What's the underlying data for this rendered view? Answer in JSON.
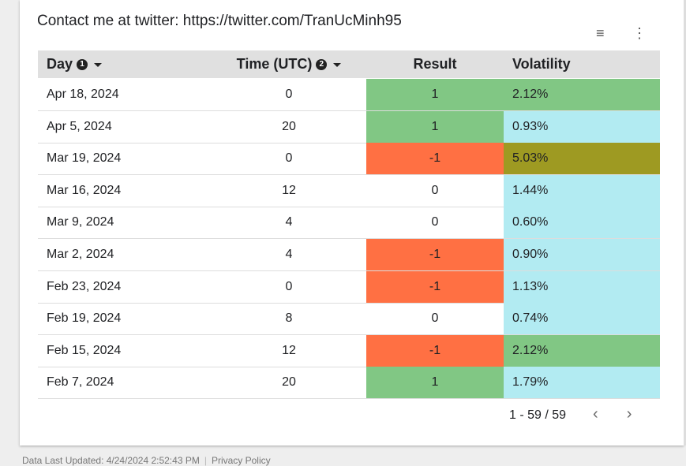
{
  "header": {
    "title": "Contact me at twitter: https://twitter.com/TranUcMinh95"
  },
  "table": {
    "columns": [
      {
        "label": "Day",
        "badge": "1"
      },
      {
        "label": "Time (UTC)",
        "badge": "2"
      },
      {
        "label": "Result"
      },
      {
        "label": "Volatility"
      }
    ],
    "rows": [
      {
        "day": "Apr 18, 2024",
        "time": 0,
        "result": 1,
        "volatility": "2.12%",
        "result_color": "#81c784",
        "volatility_color": "#81c784"
      },
      {
        "day": "Apr 5, 2024",
        "time": 20,
        "result": 1,
        "volatility": "0.93%",
        "result_color": "#81c784",
        "volatility_color": "#b2ebf2"
      },
      {
        "day": "Mar 19, 2024",
        "time": 0,
        "result": -1,
        "volatility": "5.03%",
        "result_color": "#ff7043",
        "volatility_color": "#9e9a22"
      },
      {
        "day": "Mar 16, 2024",
        "time": 12,
        "result": 0,
        "volatility": "1.44%",
        "volatility_color": "#b2ebf2"
      },
      {
        "day": "Mar 9, 2024",
        "time": 4,
        "result": 0,
        "volatility": "0.60%",
        "volatility_color": "#b2ebf2"
      },
      {
        "day": "Mar 2, 2024",
        "time": 4,
        "result": -1,
        "volatility": "0.90%",
        "result_color": "#ff7043",
        "volatility_color": "#b2ebf2"
      },
      {
        "day": "Feb 23, 2024",
        "time": 0,
        "result": -1,
        "volatility": "1.13%",
        "result_color": "#ff7043",
        "volatility_color": "#b2ebf2"
      },
      {
        "day": "Feb 19, 2024",
        "time": 8,
        "result": 0,
        "volatility": "0.74%",
        "volatility_color": "#b2ebf2"
      },
      {
        "day": "Feb 15, 2024",
        "time": 12,
        "result": -1,
        "volatility": "2.12%",
        "result_color": "#ff7043",
        "volatility_color": "#81c784"
      },
      {
        "day": "Feb 7, 2024",
        "time": 20,
        "result": 1,
        "volatility": "1.79%",
        "result_color": "#81c784",
        "volatility_color": "#b2ebf2"
      }
    ],
    "pagination": "1 - 59 / 59"
  },
  "footer": {
    "updated": "Data Last Updated: 4/24/2024 2:52:43 PM",
    "privacy": "Privacy Policy"
  }
}
